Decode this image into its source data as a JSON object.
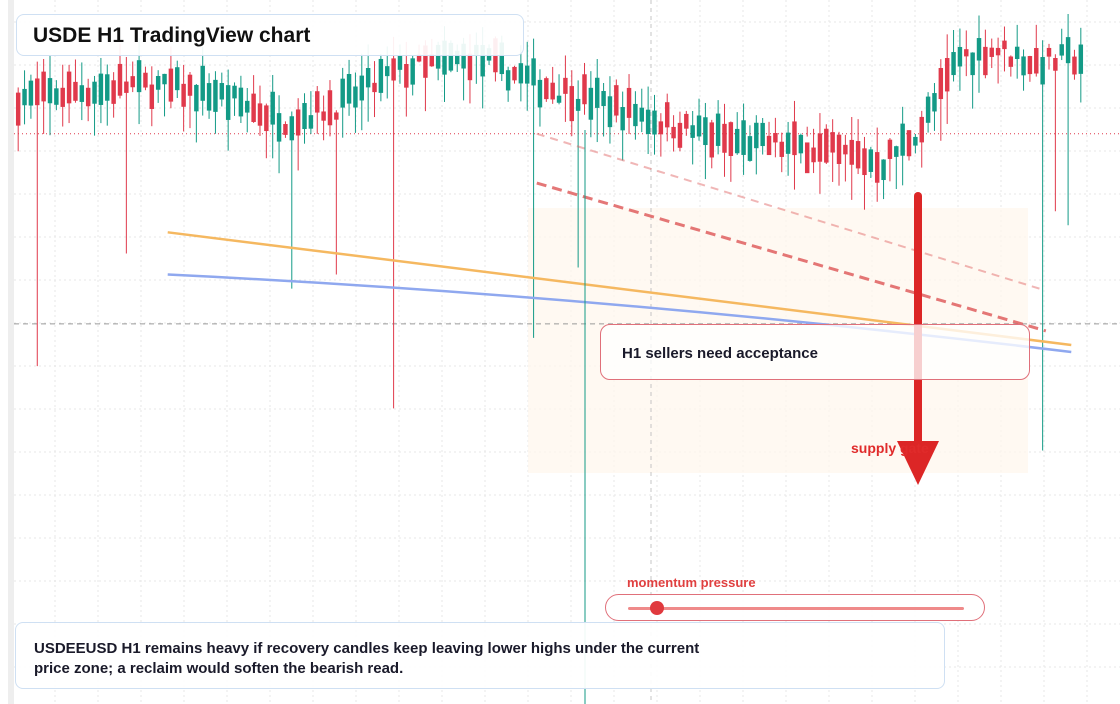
{
  "title": "USDE H1 TradingView chart",
  "callout": "H1 sellers need acceptance",
  "annotation": "supply gate",
  "momentum": {
    "label": "momentum pressure",
    "level": 0.085
  },
  "note": {
    "line1": "USDEEUSD H1 remains heavy if recovery candles keep leaving lower highs under the current",
    "line2": "price zone; a reclaim would soften the bearish read."
  },
  "colors": {
    "up": "#139a86",
    "down": "#e0394b",
    "ema_fast": "#f5b860",
    "ema_slow": "#8fa8ef",
    "arrow": "#dc2626",
    "trend": "#e06060"
  },
  "chart_data": {
    "type": "candlestick",
    "timeframe": "H1",
    "grid": true,
    "seed": 7,
    "candle_count": 168,
    "price_range": [
      0,
      100
    ],
    "current_price": 81,
    "crosshair_price": 54,
    "path": [
      [
        0,
        86
      ],
      [
        18,
        88
      ],
      [
        30,
        87
      ],
      [
        42,
        83
      ],
      [
        50,
        85
      ],
      [
        60,
        90
      ],
      [
        72,
        92
      ],
      [
        82,
        88
      ],
      [
        90,
        86
      ],
      [
        104,
        82
      ],
      [
        112,
        80
      ],
      [
        124,
        79
      ],
      [
        136,
        77
      ],
      [
        142,
        82
      ],
      [
        148,
        92
      ],
      [
        154,
        93
      ],
      [
        160,
        91
      ],
      [
        168,
        92
      ]
    ],
    "wick_spikes": [
      [
        3,
        48
      ],
      [
        17,
        64
      ],
      [
        43,
        59
      ],
      [
        50,
        61
      ],
      [
        59,
        42
      ],
      [
        81,
        52
      ],
      [
        88,
        62
      ],
      [
        118,
        80
      ],
      [
        124,
        82
      ],
      [
        145,
        80
      ],
      [
        161,
        36
      ],
      [
        163,
        70
      ],
      [
        165,
        68
      ]
    ],
    "series": [
      {
        "kind": "ema",
        "points": [
          [
            24,
            67
          ],
          [
            166,
            51
          ]
        ]
      },
      {
        "kind": "ema",
        "points": [
          [
            24,
            61
          ],
          [
            166,
            50
          ]
        ]
      }
    ],
    "trend_lines": [
      {
        "points": [
          [
            82,
            74
          ],
          [
            162,
            53
          ]
        ]
      },
      {
        "points": [
          [
            82,
            81
          ],
          [
            161,
            59
          ]
        ]
      }
    ]
  }
}
